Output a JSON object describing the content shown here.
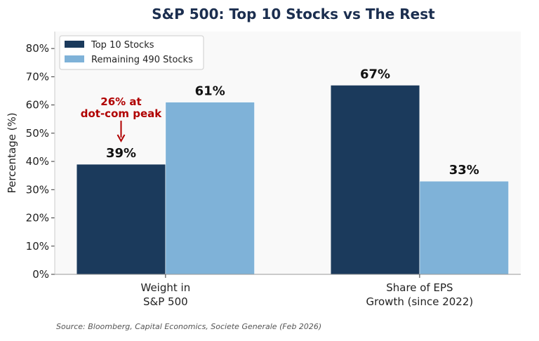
{
  "chart_data": {
    "type": "bar",
    "title": "S&P 500: Top 10 Stocks vs The Rest",
    "ylabel": "Percentage (%)",
    "xlabel": "",
    "categories": [
      [
        "Weight in",
        "S&P 500"
      ],
      [
        "Share of EPS",
        "Growth (since 2022)"
      ]
    ],
    "series": [
      {
        "name": "Top 10 Stocks",
        "values": [
          39,
          67
        ],
        "color": "#1b3a5c",
        "labels": [
          "39%",
          "67%"
        ]
      },
      {
        "name": "Remaining 490 Stocks",
        "values": [
          61,
          33
        ],
        "color": "#7fb2d8",
        "labels": [
          "61%",
          "33%"
        ]
      }
    ],
    "ylim": [
      0,
      86
    ],
    "yticks": [
      0,
      10,
      20,
      30,
      40,
      50,
      60,
      70,
      80
    ],
    "ytick_labels": [
      "0%",
      "10%",
      "20%",
      "30%",
      "40%",
      "50%",
      "60%",
      "70%",
      "80%"
    ],
    "grid": false,
    "legend": "top-left",
    "annotation": {
      "lines": [
        "26% at",
        "dot-com peak"
      ],
      "color": "#b00000",
      "target": "Top 10 Stocks / Weight in S&P 500"
    },
    "source": "Source: Bloomberg, Capital Economics, Societe Generale (Feb 2026)"
  }
}
